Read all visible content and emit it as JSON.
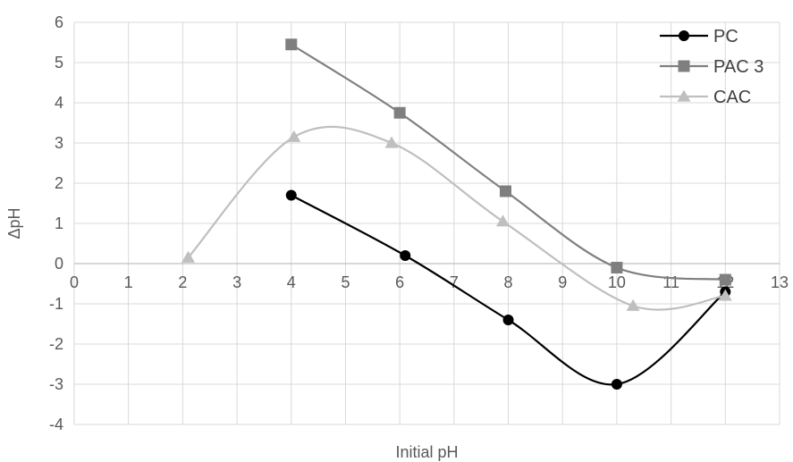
{
  "chart_data": {
    "type": "scatter",
    "title": "",
    "xlabel": "Initial pH",
    "ylabel": "ΔpH",
    "xlim": [
      0,
      13
    ],
    "ylim": [
      -4,
      6
    ],
    "xticks": [
      0,
      1,
      2,
      3,
      4,
      5,
      6,
      7,
      8,
      9,
      10,
      11,
      12,
      13
    ],
    "yticks": [
      -4,
      -3,
      -2,
      -1,
      0,
      1,
      2,
      3,
      4,
      5,
      6
    ],
    "grid": true,
    "smooth_lines": true,
    "legend_position": "top-right",
    "series": [
      {
        "name": "PC",
        "color": "#000000",
        "marker": "circle",
        "x": [
          4.0,
          6.1,
          8.0,
          10.0,
          12.0
        ],
        "y": [
          1.7,
          0.2,
          -1.4,
          -3.0,
          -0.7
        ]
      },
      {
        "name": "PAC 3",
        "color": "#7f7f7f",
        "marker": "square",
        "x": [
          4.0,
          6.0,
          7.95,
          10.0,
          12.0
        ],
        "y": [
          5.45,
          3.75,
          1.8,
          -0.1,
          -0.4
        ]
      },
      {
        "name": "CAC",
        "color": "#bfbfbf",
        "marker": "triangle",
        "x": [
          2.1,
          4.05,
          5.85,
          7.9,
          10.3,
          12.0
        ],
        "y": [
          0.15,
          3.15,
          3.0,
          1.05,
          -1.05,
          -0.8
        ]
      }
    ]
  }
}
